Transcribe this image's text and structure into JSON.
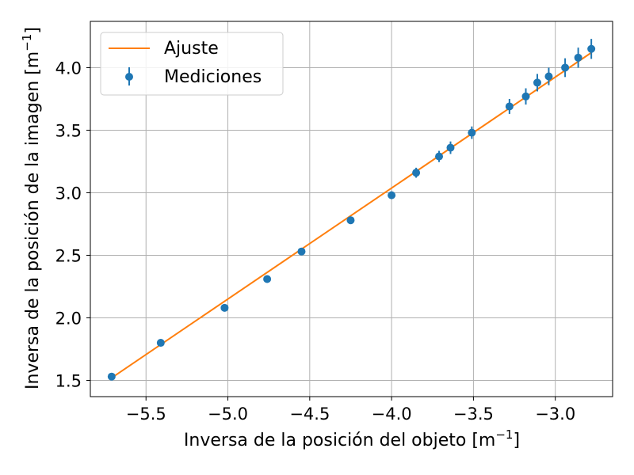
{
  "chart_data": {
    "type": "scatter",
    "xlabel": "Inversa de la posición del objeto [m",
    "ylabel": "Inversa de la posición de la imagen [m",
    "unit_exponent": "−1",
    "xlim": [
      -5.84,
      -2.65
    ],
    "ylim": [
      1.37,
      4.37
    ],
    "x_ticks": [
      -5.5,
      -5.0,
      -4.5,
      -4.0,
      -3.5,
      -3.0
    ],
    "x_tick_labels": [
      "−5.5",
      "−5.0",
      "−4.5",
      "−4.0",
      "−3.5",
      "−3.0"
    ],
    "y_ticks": [
      1.5,
      2.0,
      2.5,
      3.0,
      3.5,
      4.0
    ],
    "y_tick_labels": [
      "1.5",
      "2.0",
      "2.5",
      "3.0",
      "3.5",
      "4.0"
    ],
    "grid": true,
    "legend": {
      "position": "top-left",
      "entries": [
        "Ajuste",
        "Mediciones"
      ]
    },
    "series": [
      {
        "name": "Ajuste",
        "kind": "line",
        "color": "#ff7f0e",
        "x": [
          -5.71,
          -2.78
        ],
        "y": [
          1.52,
          4.12
        ]
      },
      {
        "name": "Mediciones",
        "kind": "errorbar",
        "color": "#1f77b4",
        "x": [
          -5.71,
          -5.41,
          -5.02,
          -4.76,
          -4.55,
          -4.25,
          -4.0,
          -3.85,
          -3.71,
          -3.64,
          -3.51,
          -3.28,
          -3.18,
          -3.11,
          -3.04,
          -2.94,
          -2.86,
          -2.78
        ],
        "y": [
          1.53,
          1.8,
          2.08,
          2.31,
          2.53,
          2.78,
          2.98,
          3.16,
          3.29,
          3.36,
          3.48,
          3.69,
          3.77,
          3.88,
          3.93,
          4.0,
          4.08,
          4.15
        ],
        "yerr": [
          0.01,
          0.01,
          0.015,
          0.02,
          0.02,
          0.03,
          0.03,
          0.04,
          0.045,
          0.05,
          0.05,
          0.06,
          0.065,
          0.07,
          0.07,
          0.075,
          0.08,
          0.08
        ]
      }
    ]
  }
}
